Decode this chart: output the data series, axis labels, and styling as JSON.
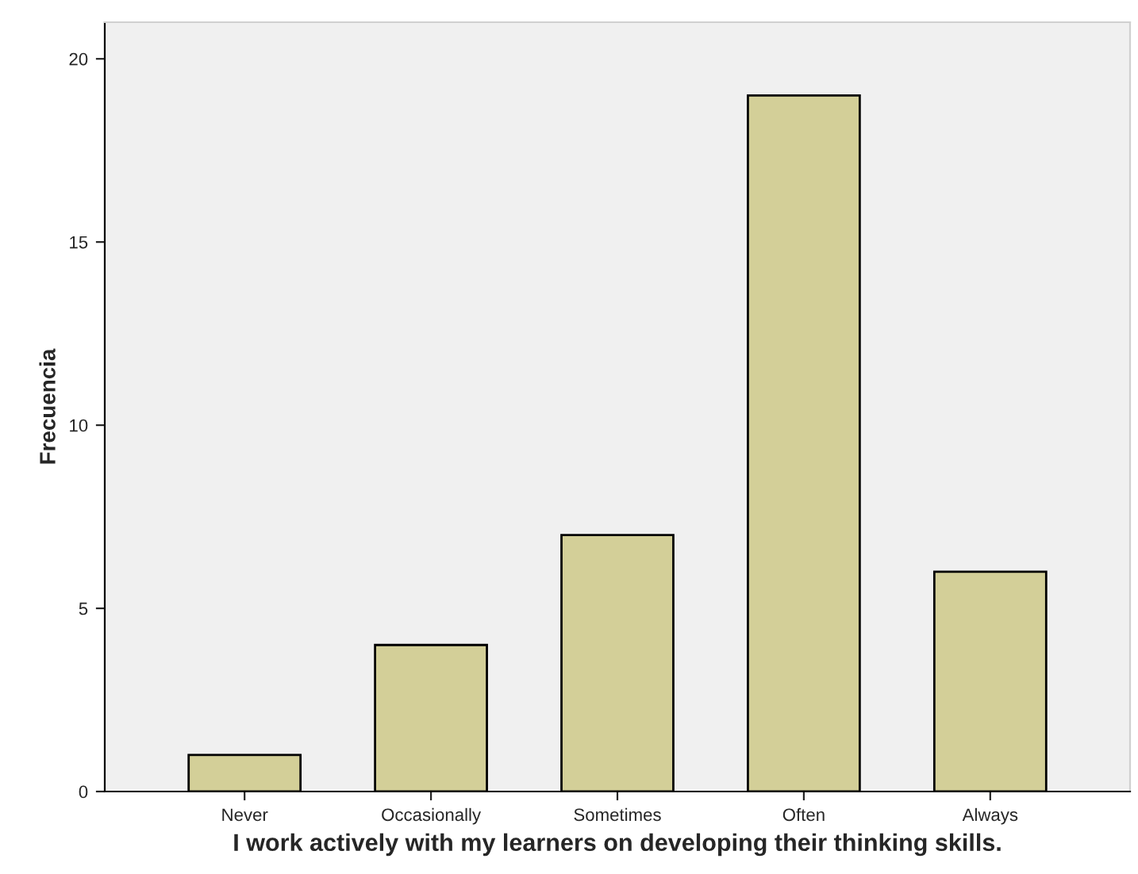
{
  "chart_data": {
    "type": "bar",
    "xlabel": "I work actively with my learners on developing their thinking skills.",
    "ylabel": "Frecuencia",
    "categories": [
      "Never",
      "Occasionally",
      "Sometimes",
      "Often",
      "Always"
    ],
    "values": [
      1,
      4,
      7,
      19,
      6
    ],
    "color": "#d3cf98",
    "ylim": [
      0,
      21
    ],
    "yticks": [
      0,
      5,
      10,
      15,
      20
    ],
    "grid": false,
    "legend": false
  }
}
